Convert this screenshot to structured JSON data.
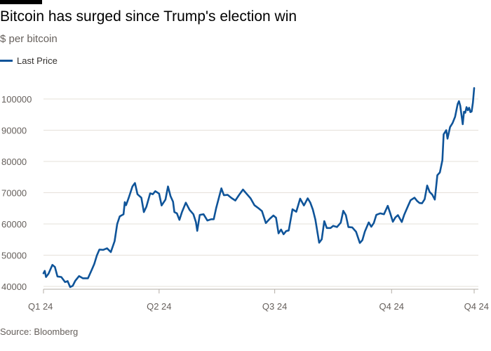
{
  "header": {
    "title": "Bitcoin has surged since Trump's election win",
    "subtitle": "$ per bitcoin"
  },
  "legend": {
    "label": "Last Price",
    "color": "#0f5499"
  },
  "source": "Source: Bloomberg",
  "chart_data": {
    "type": "line",
    "title": "Bitcoin has surged since Trump's election win",
    "subtitle": "$ per bitcoin",
    "ylim": [
      40000,
      105000
    ],
    "y_ticks": [
      40000,
      50000,
      60000,
      70000,
      80000,
      90000,
      100000
    ],
    "x_ticks": [
      {
        "label": "Q1 24",
        "x": "2024-01-01"
      },
      {
        "label": "Q2 24",
        "x": "2024-04-01"
      },
      {
        "label": "Q3 24",
        "x": "2024-07-01"
      },
      {
        "label": "Q4 24",
        "x": "2024-10-01"
      },
      {
        "label": "Q4 24",
        "x": "2024-12-05"
      }
    ],
    "grid": true,
    "legend_position": "top-left",
    "series": [
      {
        "name": "Last Price",
        "color": "#0f5499",
        "points": [
          [
            "2024-01-01",
            44200
          ],
          [
            "2024-01-02",
            45000
          ],
          [
            "2024-01-03",
            43000
          ],
          [
            "2024-01-05",
            44100
          ],
          [
            "2024-01-08",
            46900
          ],
          [
            "2024-01-10",
            46200
          ],
          [
            "2024-01-12",
            43200
          ],
          [
            "2024-01-15",
            43000
          ],
          [
            "2024-01-18",
            41400
          ],
          [
            "2024-01-20",
            41700
          ],
          [
            "2024-01-22",
            39800
          ],
          [
            "2024-01-24",
            40200
          ],
          [
            "2024-01-26",
            41800
          ],
          [
            "2024-01-29",
            43300
          ],
          [
            "2024-02-01",
            42600
          ],
          [
            "2024-02-05",
            42600
          ],
          [
            "2024-02-08",
            45300
          ],
          [
            "2024-02-10",
            47200
          ],
          [
            "2024-02-12",
            49900
          ],
          [
            "2024-02-14",
            51800
          ],
          [
            "2024-02-17",
            51700
          ],
          [
            "2024-02-20",
            52200
          ],
          [
            "2024-02-23",
            51000
          ],
          [
            "2024-02-26",
            54500
          ],
          [
            "2024-02-28",
            60000
          ],
          [
            "2024-03-01",
            62400
          ],
          [
            "2024-03-04",
            63100
          ],
          [
            "2024-03-05",
            67000
          ],
          [
            "2024-03-06",
            66000
          ],
          [
            "2024-03-08",
            68300
          ],
          [
            "2024-03-11",
            72000
          ],
          [
            "2024-03-13",
            73100
          ],
          [
            "2024-03-15",
            69500
          ],
          [
            "2024-03-18",
            68400
          ],
          [
            "2024-03-20",
            63800
          ],
          [
            "2024-03-22",
            65500
          ],
          [
            "2024-03-25",
            69800
          ],
          [
            "2024-03-27",
            69500
          ],
          [
            "2024-03-29",
            70500
          ],
          [
            "2024-04-01",
            69700
          ],
          [
            "2024-04-03",
            65900
          ],
          [
            "2024-04-06",
            67800
          ],
          [
            "2024-04-08",
            72000
          ],
          [
            "2024-04-10",
            68900
          ],
          [
            "2024-04-12",
            67100
          ],
          [
            "2024-04-13",
            63800
          ],
          [
            "2024-04-15",
            63400
          ],
          [
            "2024-04-17",
            61300
          ],
          [
            "2024-04-19",
            63800
          ],
          [
            "2024-04-22",
            66800
          ],
          [
            "2024-04-25",
            64500
          ],
          [
            "2024-04-28",
            63100
          ],
          [
            "2024-04-30",
            60600
          ],
          [
            "2024-05-01",
            57800
          ],
          [
            "2024-05-03",
            62900
          ],
          [
            "2024-05-06",
            63100
          ],
          [
            "2024-05-09",
            61100
          ],
          [
            "2024-05-12",
            61500
          ],
          [
            "2024-05-14",
            61500
          ],
          [
            "2024-05-16",
            65200
          ],
          [
            "2024-05-20",
            71400
          ],
          [
            "2024-05-22",
            69200
          ],
          [
            "2024-05-25",
            69300
          ],
          [
            "2024-05-28",
            68300
          ],
          [
            "2024-05-31",
            67500
          ],
          [
            "2024-06-03",
            69300
          ],
          [
            "2024-06-06",
            71000
          ],
          [
            "2024-06-09",
            69600
          ],
          [
            "2024-06-12",
            68200
          ],
          [
            "2024-06-15",
            66000
          ],
          [
            "2024-06-18",
            65100
          ],
          [
            "2024-06-21",
            64100
          ],
          [
            "2024-06-24",
            60300
          ],
          [
            "2024-06-27",
            61600
          ],
          [
            "2024-06-30",
            62700
          ],
          [
            "2024-07-02",
            62000
          ],
          [
            "2024-07-04",
            57000
          ],
          [
            "2024-07-06",
            58200
          ],
          [
            "2024-07-08",
            56700
          ],
          [
            "2024-07-10",
            57700
          ],
          [
            "2024-07-12",
            57900
          ],
          [
            "2024-07-15",
            64700
          ],
          [
            "2024-07-18",
            63900
          ],
          [
            "2024-07-21",
            68100
          ],
          [
            "2024-07-24",
            65900
          ],
          [
            "2024-07-27",
            68200
          ],
          [
            "2024-07-29",
            66800
          ],
          [
            "2024-07-31",
            64600
          ],
          [
            "2024-08-02",
            61400
          ],
          [
            "2024-08-05",
            54000
          ],
          [
            "2024-08-07",
            55100
          ],
          [
            "2024-08-09",
            60900
          ],
          [
            "2024-08-11",
            58700
          ],
          [
            "2024-08-14",
            58700
          ],
          [
            "2024-08-16",
            59400
          ],
          [
            "2024-08-19",
            59000
          ],
          [
            "2024-08-22",
            60400
          ],
          [
            "2024-08-24",
            64200
          ],
          [
            "2024-08-26",
            62800
          ],
          [
            "2024-08-28",
            59000
          ],
          [
            "2024-08-31",
            58900
          ],
          [
            "2024-09-03",
            57500
          ],
          [
            "2024-09-06",
            53900
          ],
          [
            "2024-09-08",
            54800
          ],
          [
            "2024-09-10",
            57600
          ],
          [
            "2024-09-13",
            60500
          ],
          [
            "2024-09-15",
            59100
          ],
          [
            "2024-09-17",
            60300
          ],
          [
            "2024-09-19",
            62900
          ],
          [
            "2024-09-22",
            63400
          ],
          [
            "2024-09-25",
            63100
          ],
          [
            "2024-09-28",
            65800
          ],
          [
            "2024-09-30",
            63300
          ],
          [
            "2024-10-02",
            60700
          ],
          [
            "2024-10-04",
            62100
          ],
          [
            "2024-10-06",
            62800
          ],
          [
            "2024-10-09",
            60600
          ],
          [
            "2024-10-11",
            63000
          ],
          [
            "2024-10-14",
            65800
          ],
          [
            "2024-10-16",
            67600
          ],
          [
            "2024-10-19",
            68400
          ],
          [
            "2024-10-21",
            67400
          ],
          [
            "2024-10-23",
            66700
          ],
          [
            "2024-10-25",
            66600
          ],
          [
            "2024-10-27",
            67900
          ],
          [
            "2024-10-29",
            72300
          ],
          [
            "2024-10-31",
            70200
          ],
          [
            "2024-11-02",
            69400
          ],
          [
            "2024-11-04",
            67800
          ],
          [
            "2024-11-06",
            75600
          ],
          [
            "2024-11-08",
            76500
          ],
          [
            "2024-11-10",
            80400
          ],
          [
            "2024-11-11",
            88700
          ],
          [
            "2024-11-13",
            90000
          ],
          [
            "2024-11-14",
            87300
          ],
          [
            "2024-11-16",
            91000
          ],
          [
            "2024-11-18",
            92300
          ],
          [
            "2024-11-20",
            94300
          ],
          [
            "2024-11-22",
            98400
          ],
          [
            "2024-11-23",
            99300
          ],
          [
            "2024-11-24",
            97900
          ],
          [
            "2024-11-26",
            91900
          ],
          [
            "2024-11-27",
            95900
          ],
          [
            "2024-11-28",
            95600
          ],
          [
            "2024-11-29",
            97400
          ],
          [
            "2024-11-30",
            96400
          ],
          [
            "2024-12-01",
            97200
          ],
          [
            "2024-12-02",
            95800
          ],
          [
            "2024-12-03",
            96000
          ],
          [
            "2024-12-04",
            98800
          ],
          [
            "2024-12-05",
            103500
          ]
        ]
      }
    ]
  }
}
